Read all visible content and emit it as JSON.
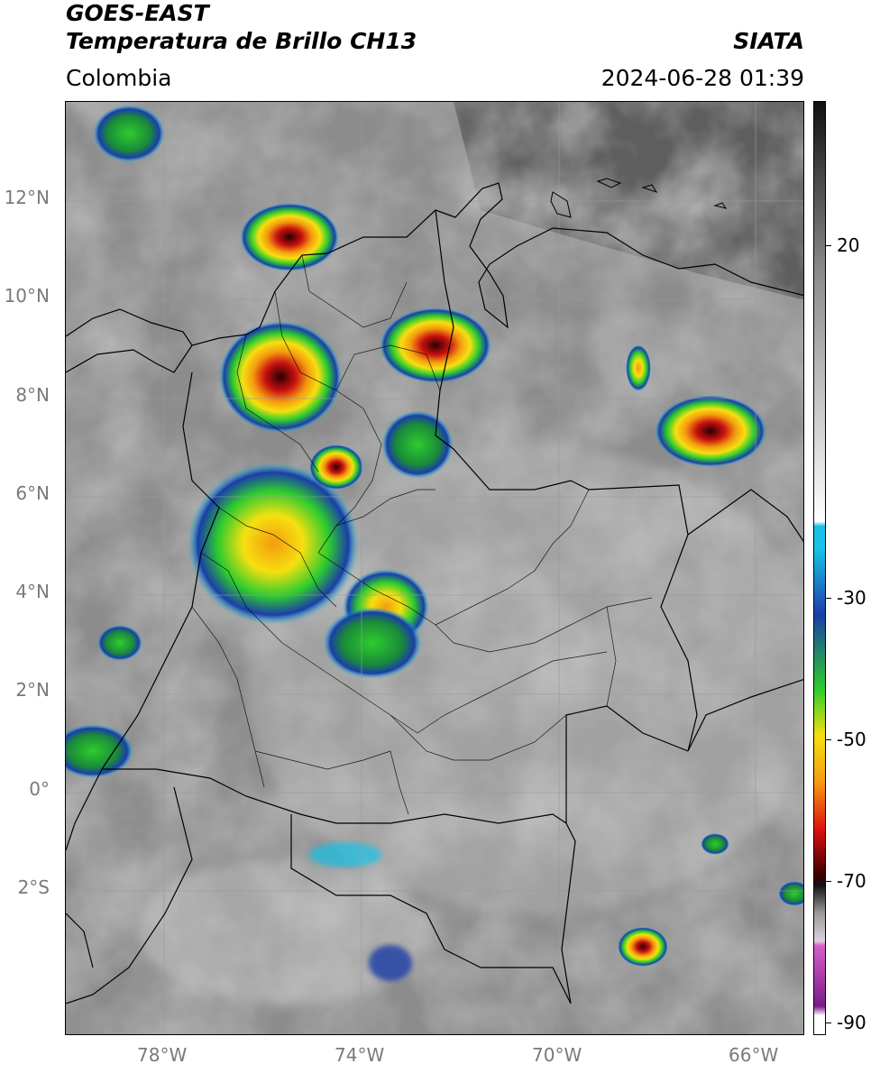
{
  "header": {
    "satellite": "GOES-EAST",
    "product": "Temperatura de Brillo CH13",
    "region": "Colombia",
    "agency": "SIATA",
    "timestamp": "2024-06-28 01:39"
  },
  "map": {
    "lat_labels": [
      "12°N",
      "10°N",
      "8°N",
      "6°N",
      "4°N",
      "2°N",
      "0°",
      "2°S"
    ],
    "lon_labels": [
      "78°W",
      "74°W",
      "70°W",
      "66°W"
    ],
    "extent": {
      "lon_min": -80,
      "lon_max": -65,
      "lat_min": -5,
      "lat_max": 14
    }
  },
  "colorbar": {
    "labels": [
      "20",
      "-30",
      "-50",
      "-70",
      "-90"
    ],
    "colors": {
      "warm_top": "#111111",
      "gray": "#8a8a8a",
      "light": "#e8e8e8",
      "cyan": "#19c2e6",
      "blue": "#1a3ea8",
      "green": "#2ecc2e",
      "yellow": "#f5e010",
      "orange": "#f59a10",
      "red": "#e01010",
      "dark": "#3a0000",
      "magenta": "#d85ec8",
      "purple": "#7a1a8a"
    }
  }
}
